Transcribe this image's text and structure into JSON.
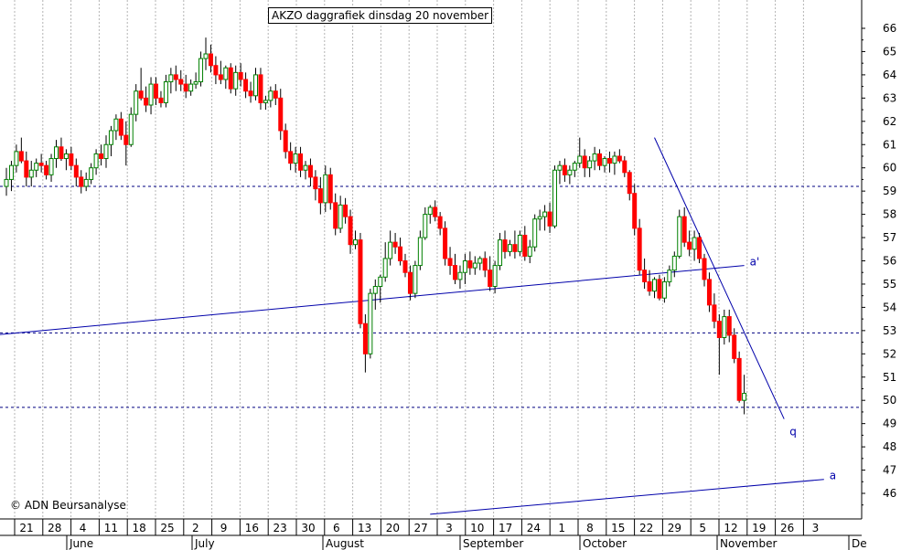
{
  "chart_data": {
    "type": "candlestick",
    "title": "AKZO daggrafiek dinsdag 20 november",
    "copyright": "© ADN Beursanalyse",
    "ylim": [
      45,
      66.5
    ],
    "y_ticks": [
      46,
      47,
      48,
      49,
      50,
      51,
      52,
      53,
      54,
      55,
      56,
      57,
      58,
      59,
      60,
      61,
      62,
      63,
      64,
      65,
      66
    ],
    "week_labels": [
      "21",
      "28",
      "4",
      "11",
      "18",
      "25",
      "2",
      "9",
      "16",
      "23",
      "30",
      "6",
      "13",
      "20",
      "27",
      "3",
      "10",
      "17",
      "24",
      "1",
      "8",
      "15",
      "22",
      "29",
      "5",
      "12",
      "19",
      "26",
      "3"
    ],
    "month_labels": [
      "June",
      "July",
      "August",
      "September",
      "October",
      "November",
      "De"
    ],
    "colors": {
      "up": "#008000",
      "down": "#ff0000",
      "wick": "#000000",
      "trend": "#0000aa",
      "level": "#000080",
      "grid": "#b4b4b4"
    },
    "horizontal_levels": [
      59.2,
      52.9,
      49.7
    ],
    "trendlines": [
      {
        "label": "a'",
        "from": {
          "index": -3,
          "y": 52.8
        },
        "to": {
          "index": 148,
          "y": 55.8
        }
      },
      {
        "label": "q",
        "from": {
          "index": 130,
          "y": 61.3
        },
        "to": {
          "index": 156,
          "y": 49.2
        }
      },
      {
        "label": "a",
        "from": {
          "index": 85,
          "y": 45.1
        },
        "to": {
          "index": 164,
          "y": 46.6
        }
      }
    ],
    "candles_ohlc": [
      [
        59.2,
        60.0,
        58.8,
        59.5
      ],
      [
        59.5,
        60.3,
        59.0,
        60.1
      ],
      [
        60.1,
        61.0,
        59.8,
        60.7
      ],
      [
        60.7,
        61.3,
        60.2,
        60.3
      ],
      [
        60.3,
        60.7,
        59.2,
        59.6
      ],
      [
        59.6,
        60.3,
        59.2,
        59.9
      ],
      [
        59.9,
        60.4,
        59.6,
        60.2
      ],
      [
        60.2,
        60.6,
        59.8,
        60.1
      ],
      [
        60.1,
        60.3,
        59.5,
        59.7
      ],
      [
        59.7,
        60.6,
        59.4,
        60.4
      ],
      [
        60.4,
        61.2,
        60.0,
        60.9
      ],
      [
        60.9,
        61.3,
        60.3,
        60.4
      ],
      [
        60.4,
        60.8,
        59.9,
        60.6
      ],
      [
        60.6,
        60.9,
        59.9,
        60.1
      ],
      [
        60.1,
        60.4,
        59.2,
        59.6
      ],
      [
        59.6,
        59.9,
        58.9,
        59.2
      ],
      [
        59.2,
        59.8,
        59.0,
        59.5
      ],
      [
        59.5,
        60.2,
        59.3,
        60.0
      ],
      [
        60.0,
        60.8,
        59.7,
        60.6
      ],
      [
        60.6,
        61.0,
        60.1,
        60.4
      ],
      [
        60.4,
        61.4,
        60.0,
        61.0
      ],
      [
        61.0,
        61.8,
        60.5,
        61.6
      ],
      [
        61.6,
        62.3,
        61.2,
        62.1
      ],
      [
        62.1,
        62.4,
        61.2,
        61.4
      ],
      [
        61.4,
        62.0,
        60.1,
        61.0
      ],
      [
        61.0,
        62.6,
        60.9,
        62.3
      ],
      [
        62.3,
        63.6,
        62.0,
        63.3
      ],
      [
        63.3,
        64.3,
        62.9,
        63.0
      ],
      [
        63.0,
        63.5,
        62.4,
        62.7
      ],
      [
        62.7,
        63.9,
        62.3,
        63.6
      ],
      [
        63.6,
        63.9,
        62.7,
        63.0
      ],
      [
        63.0,
        63.3,
        62.6,
        62.8
      ],
      [
        62.8,
        64.0,
        62.6,
        63.7
      ],
      [
        63.7,
        64.3,
        63.2,
        64.0
      ],
      [
        64.0,
        64.4,
        63.3,
        63.8
      ],
      [
        63.8,
        64.2,
        63.3,
        63.6
      ],
      [
        63.6,
        64.0,
        63.0,
        63.3
      ],
      [
        63.3,
        63.8,
        63.1,
        63.6
      ],
      [
        63.6,
        64.1,
        63.4,
        63.7
      ],
      [
        63.7,
        65.0,
        63.5,
        64.7
      ],
      [
        64.7,
        65.6,
        64.2,
        64.9
      ],
      [
        64.9,
        65.3,
        64.1,
        64.4
      ],
      [
        64.4,
        64.8,
        63.6,
        64.0
      ],
      [
        64.0,
        64.6,
        63.6,
        63.8
      ],
      [
        63.8,
        64.4,
        63.4,
        64.3
      ],
      [
        64.3,
        64.5,
        63.2,
        63.4
      ],
      [
        63.4,
        64.4,
        63.1,
        64.1
      ],
      [
        64.1,
        64.5,
        63.5,
        63.8
      ],
      [
        63.8,
        64.1,
        63.0,
        63.3
      ],
      [
        63.3,
        63.7,
        62.8,
        63.1
      ],
      [
        63.1,
        64.3,
        62.9,
        64.0
      ],
      [
        64.0,
        64.3,
        62.5,
        62.8
      ],
      [
        62.8,
        63.1,
        62.5,
        62.9
      ],
      [
        62.9,
        63.5,
        62.6,
        63.3
      ],
      [
        63.3,
        63.6,
        62.7,
        63.0
      ],
      [
        63.0,
        63.4,
        61.2,
        61.6
      ],
      [
        61.6,
        61.9,
        60.4,
        60.7
      ],
      [
        60.7,
        61.1,
        59.9,
        60.2
      ],
      [
        60.2,
        60.9,
        59.8,
        60.6
      ],
      [
        60.6,
        60.9,
        59.6,
        59.9
      ],
      [
        59.9,
        60.3,
        59.5,
        60.1
      ],
      [
        60.1,
        60.4,
        59.2,
        59.6
      ],
      [
        59.6,
        59.9,
        58.6,
        59.1
      ],
      [
        59.1,
        59.6,
        58.0,
        58.5
      ],
      [
        58.5,
        60.1,
        58.1,
        59.7
      ],
      [
        59.7,
        60.0,
        58.2,
        58.5
      ],
      [
        58.5,
        58.9,
        57.1,
        57.4
      ],
      [
        57.4,
        58.8,
        57.2,
        58.4
      ],
      [
        58.4,
        58.7,
        57.6,
        57.9
      ],
      [
        57.9,
        58.2,
        56.3,
        56.7
      ],
      [
        56.7,
        57.3,
        56.5,
        56.9
      ],
      [
        56.9,
        57.2,
        53.1,
        53.3
      ],
      [
        53.3,
        53.7,
        51.2,
        52.0
      ],
      [
        52.0,
        54.8,
        51.8,
        54.6
      ],
      [
        54.6,
        55.2,
        53.9,
        54.9
      ],
      [
        54.9,
        55.4,
        54.2,
        55.3
      ],
      [
        55.3,
        56.8,
        55.1,
        56.1
      ],
      [
        56.1,
        57.3,
        55.8,
        56.8
      ],
      [
        56.8,
        57.2,
        56.3,
        56.6
      ],
      [
        56.6,
        57.0,
        55.8,
        56.0
      ],
      [
        56.0,
        56.3,
        55.3,
        55.5
      ],
      [
        55.5,
        55.8,
        54.3,
        54.6
      ],
      [
        54.6,
        56.0,
        54.4,
        55.8
      ],
      [
        55.8,
        57.3,
        55.6,
        57.0
      ],
      [
        57.0,
        58.3,
        56.9,
        58.0
      ],
      [
        58.0,
        58.4,
        57.6,
        58.3
      ],
      [
        58.3,
        58.6,
        57.7,
        57.9
      ],
      [
        57.9,
        58.1,
        57.1,
        57.4
      ],
      [
        57.4,
        57.7,
        55.8,
        56.1
      ],
      [
        56.1,
        56.6,
        55.4,
        55.8
      ],
      [
        55.8,
        56.3,
        55.0,
        55.2
      ],
      [
        55.2,
        55.8,
        54.8,
        55.5
      ],
      [
        55.5,
        56.3,
        55.0,
        56.0
      ],
      [
        56.0,
        56.4,
        55.4,
        55.7
      ],
      [
        55.7,
        56.2,
        55.4,
        55.9
      ],
      [
        55.9,
        56.2,
        55.6,
        56.1
      ],
      [
        56.1,
        56.4,
        55.3,
        55.6
      ],
      [
        55.6,
        56.2,
        54.7,
        54.9
      ],
      [
        54.9,
        56.0,
        54.6,
        55.8
      ],
      [
        55.8,
        57.2,
        55.6,
        56.9
      ],
      [
        56.9,
        57.3,
        56.1,
        56.4
      ],
      [
        56.4,
        56.9,
        56.2,
        56.7
      ],
      [
        56.7,
        57.3,
        56.1,
        56.4
      ],
      [
        56.4,
        57.3,
        56.2,
        57.1
      ],
      [
        57.1,
        57.5,
        56.0,
        56.2
      ],
      [
        56.2,
        56.9,
        55.9,
        56.6
      ],
      [
        56.6,
        58.0,
        56.4,
        57.8
      ],
      [
        57.8,
        58.2,
        57.3,
        57.9
      ],
      [
        57.9,
        58.4,
        57.3,
        58.1
      ],
      [
        58.1,
        58.5,
        57.2,
        57.5
      ],
      [
        57.5,
        60.1,
        57.4,
        59.9
      ],
      [
        59.9,
        60.3,
        59.3,
        60.1
      ],
      [
        60.1,
        60.4,
        59.4,
        59.7
      ],
      [
        59.7,
        60.1,
        59.3,
        59.9
      ],
      [
        59.9,
        60.3,
        59.6,
        60.2
      ],
      [
        60.2,
        61.3,
        60.0,
        60.5
      ],
      [
        60.5,
        60.8,
        59.6,
        60.0
      ],
      [
        60.0,
        60.5,
        59.6,
        60.3
      ],
      [
        60.3,
        60.9,
        59.9,
        60.6
      ],
      [
        60.6,
        60.8,
        59.9,
        60.1
      ],
      [
        60.1,
        60.5,
        59.8,
        60.4
      ],
      [
        60.4,
        60.7,
        59.8,
        60.2
      ],
      [
        60.2,
        60.7,
        59.7,
        60.5
      ],
      [
        60.5,
        60.8,
        60.2,
        60.3
      ],
      [
        60.3,
        60.5,
        59.6,
        59.8
      ],
      [
        59.8,
        59.9,
        58.6,
        58.9
      ],
      [
        58.9,
        59.3,
        57.1,
        57.4
      ],
      [
        57.4,
        57.8,
        55.4,
        55.6
      ],
      [
        55.6,
        56.1,
        54.8,
        55.1
      ],
      [
        55.1,
        55.6,
        54.5,
        54.7
      ],
      [
        54.7,
        55.3,
        54.4,
        55.2
      ],
      [
        55.2,
        55.4,
        54.3,
        54.4
      ],
      [
        54.4,
        55.3,
        54.2,
        55.1
      ],
      [
        55.1,
        55.8,
        54.9,
        55.6
      ],
      [
        55.6,
        56.4,
        55.3,
        56.2
      ],
      [
        56.2,
        58.2,
        56.1,
        57.9
      ],
      [
        57.9,
        58.3,
        56.6,
        56.8
      ],
      [
        56.8,
        57.3,
        56.2,
        56.5
      ],
      [
        56.5,
        57.3,
        56.0,
        57.0
      ],
      [
        57.0,
        57.2,
        55.9,
        56.1
      ],
      [
        56.1,
        56.3,
        54.9,
        55.2
      ],
      [
        55.2,
        55.5,
        53.8,
        54.1
      ],
      [
        54.1,
        54.6,
        53.1,
        53.4
      ],
      [
        53.4,
        53.7,
        51.1,
        52.7
      ],
      [
        52.7,
        53.9,
        52.4,
        53.6
      ],
      [
        53.6,
        53.9,
        52.5,
        52.8
      ],
      [
        52.8,
        53.1,
        51.6,
        51.8
      ],
      [
        51.8,
        52.1,
        49.9,
        50.0
      ],
      [
        50.0,
        51.1,
        49.4,
        50.3
      ]
    ],
    "x_range": [
      -3.5,
      169
    ],
    "grid": true
  }
}
